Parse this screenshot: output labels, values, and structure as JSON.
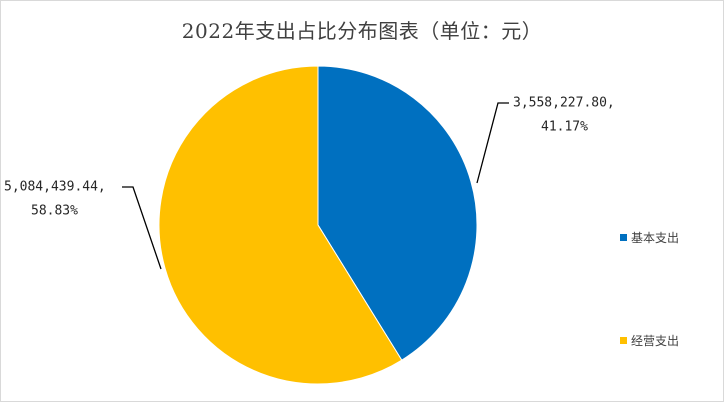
{
  "chart_data": {
    "type": "pie",
    "title": "2022年支出占比分布图表（单位：元）",
    "slices": [
      {
        "name": "基本支出",
        "value": 3558227.8,
        "value_label": "3,558,227.80,",
        "percent_label": "41.17%",
        "percent": 41.17,
        "color": "#0070C0"
      },
      {
        "name": "经营支出",
        "value": 5084439.44,
        "value_label": "5,084,439.44,",
        "percent_label": "58.83%",
        "percent": 58.83,
        "color": "#FFC000"
      }
    ],
    "start_angle_deg": 0,
    "direction": "clockwise",
    "legend_position": "right",
    "leader_line_color": "#000000"
  }
}
